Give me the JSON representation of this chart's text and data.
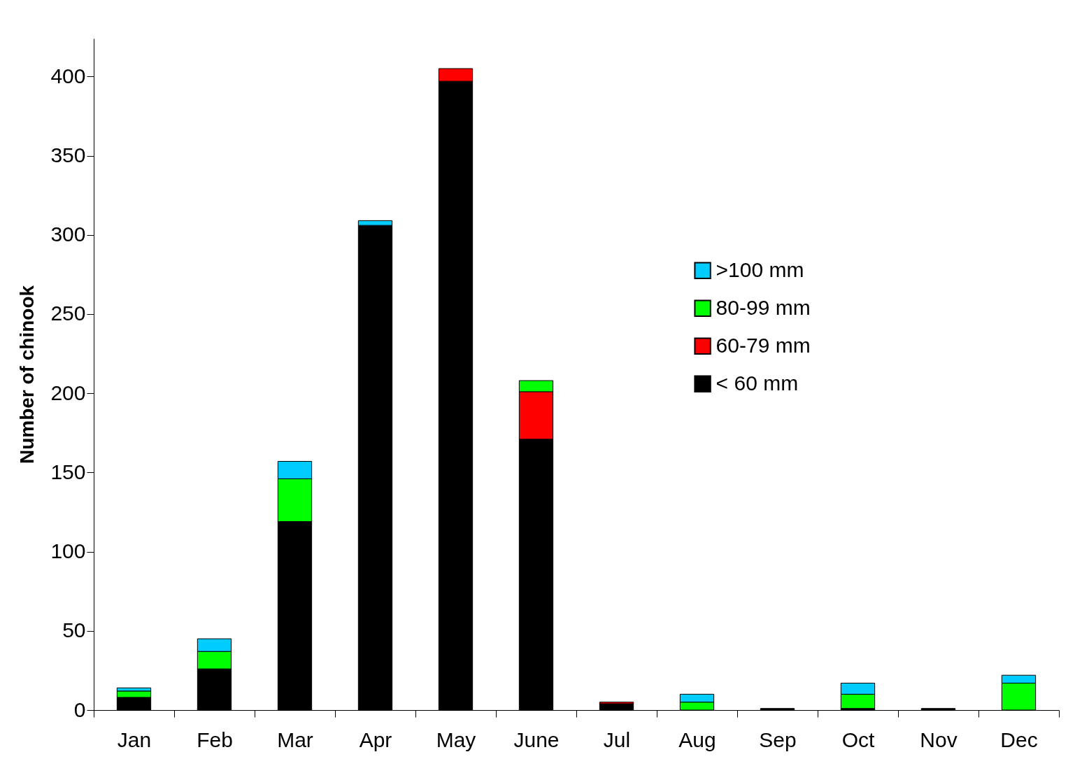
{
  "chart_data": {
    "type": "bar",
    "ylabel": "Number of chinook",
    "stacked": true,
    "legend": "right",
    "grid": false,
    "categories": [
      "Jan",
      "Feb",
      "Mar",
      "Apr",
      "May",
      "June",
      "Jul",
      "Aug",
      "Sep",
      "Oct",
      "Nov",
      "Dec"
    ],
    "ylim": [
      0,
      424
    ],
    "yticks": [
      0,
      50,
      100,
      150,
      200,
      250,
      300,
      350,
      400
    ],
    "series": [
      {
        "name": "< 60 mm",
        "color": "#000000",
        "values": [
          8,
          26,
          119,
          306,
          397,
          171,
          4,
          0,
          1,
          1,
          1,
          0
        ]
      },
      {
        "name": "60-79 mm",
        "color": "#ff0000",
        "values": [
          0,
          0,
          0,
          0,
          8,
          30,
          1,
          0,
          0,
          0,
          0,
          0
        ]
      },
      {
        "name": "80-99 mm",
        "color": "#00ff00",
        "values": [
          4,
          11,
          27,
          0,
          0,
          7,
          0,
          5,
          0,
          9,
          0,
          17
        ]
      },
      {
        "name": ">100 mm",
        "color": "#00ccff",
        "values": [
          2,
          8,
          11,
          3,
          0,
          0,
          0,
          5,
          0,
          7,
          0,
          5
        ]
      }
    ]
  }
}
